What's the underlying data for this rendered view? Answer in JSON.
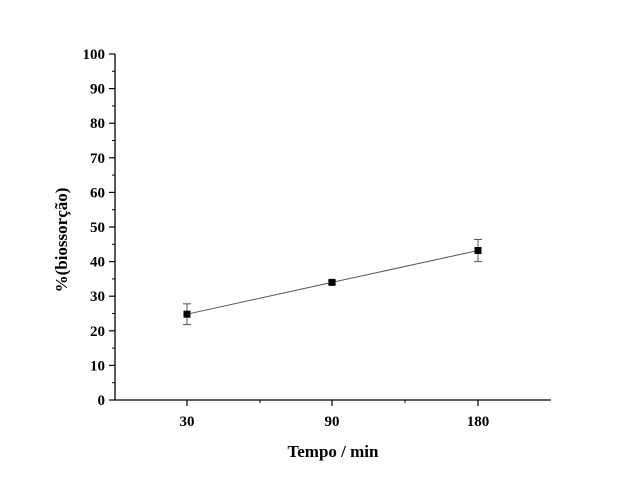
{
  "chart_data": {
    "type": "line",
    "title": "",
    "xlabel": "Tempo / min",
    "ylabel": "%(biossorção)",
    "categories": [
      "30",
      "90",
      "180"
    ],
    "ylim": [
      0,
      100
    ],
    "yticks": [
      "0",
      "10",
      "20",
      "30",
      "40",
      "50",
      "60",
      "70",
      "80",
      "90",
      "100"
    ],
    "series": [
      {
        "values": [
          24.8,
          34.0,
          43.2
        ],
        "errors": [
          3.0,
          0.5,
          3.2
        ],
        "marker": "square",
        "color": "#000000",
        "line_color": "#555555"
      }
    ],
    "grid": false,
    "legend": "none"
  }
}
